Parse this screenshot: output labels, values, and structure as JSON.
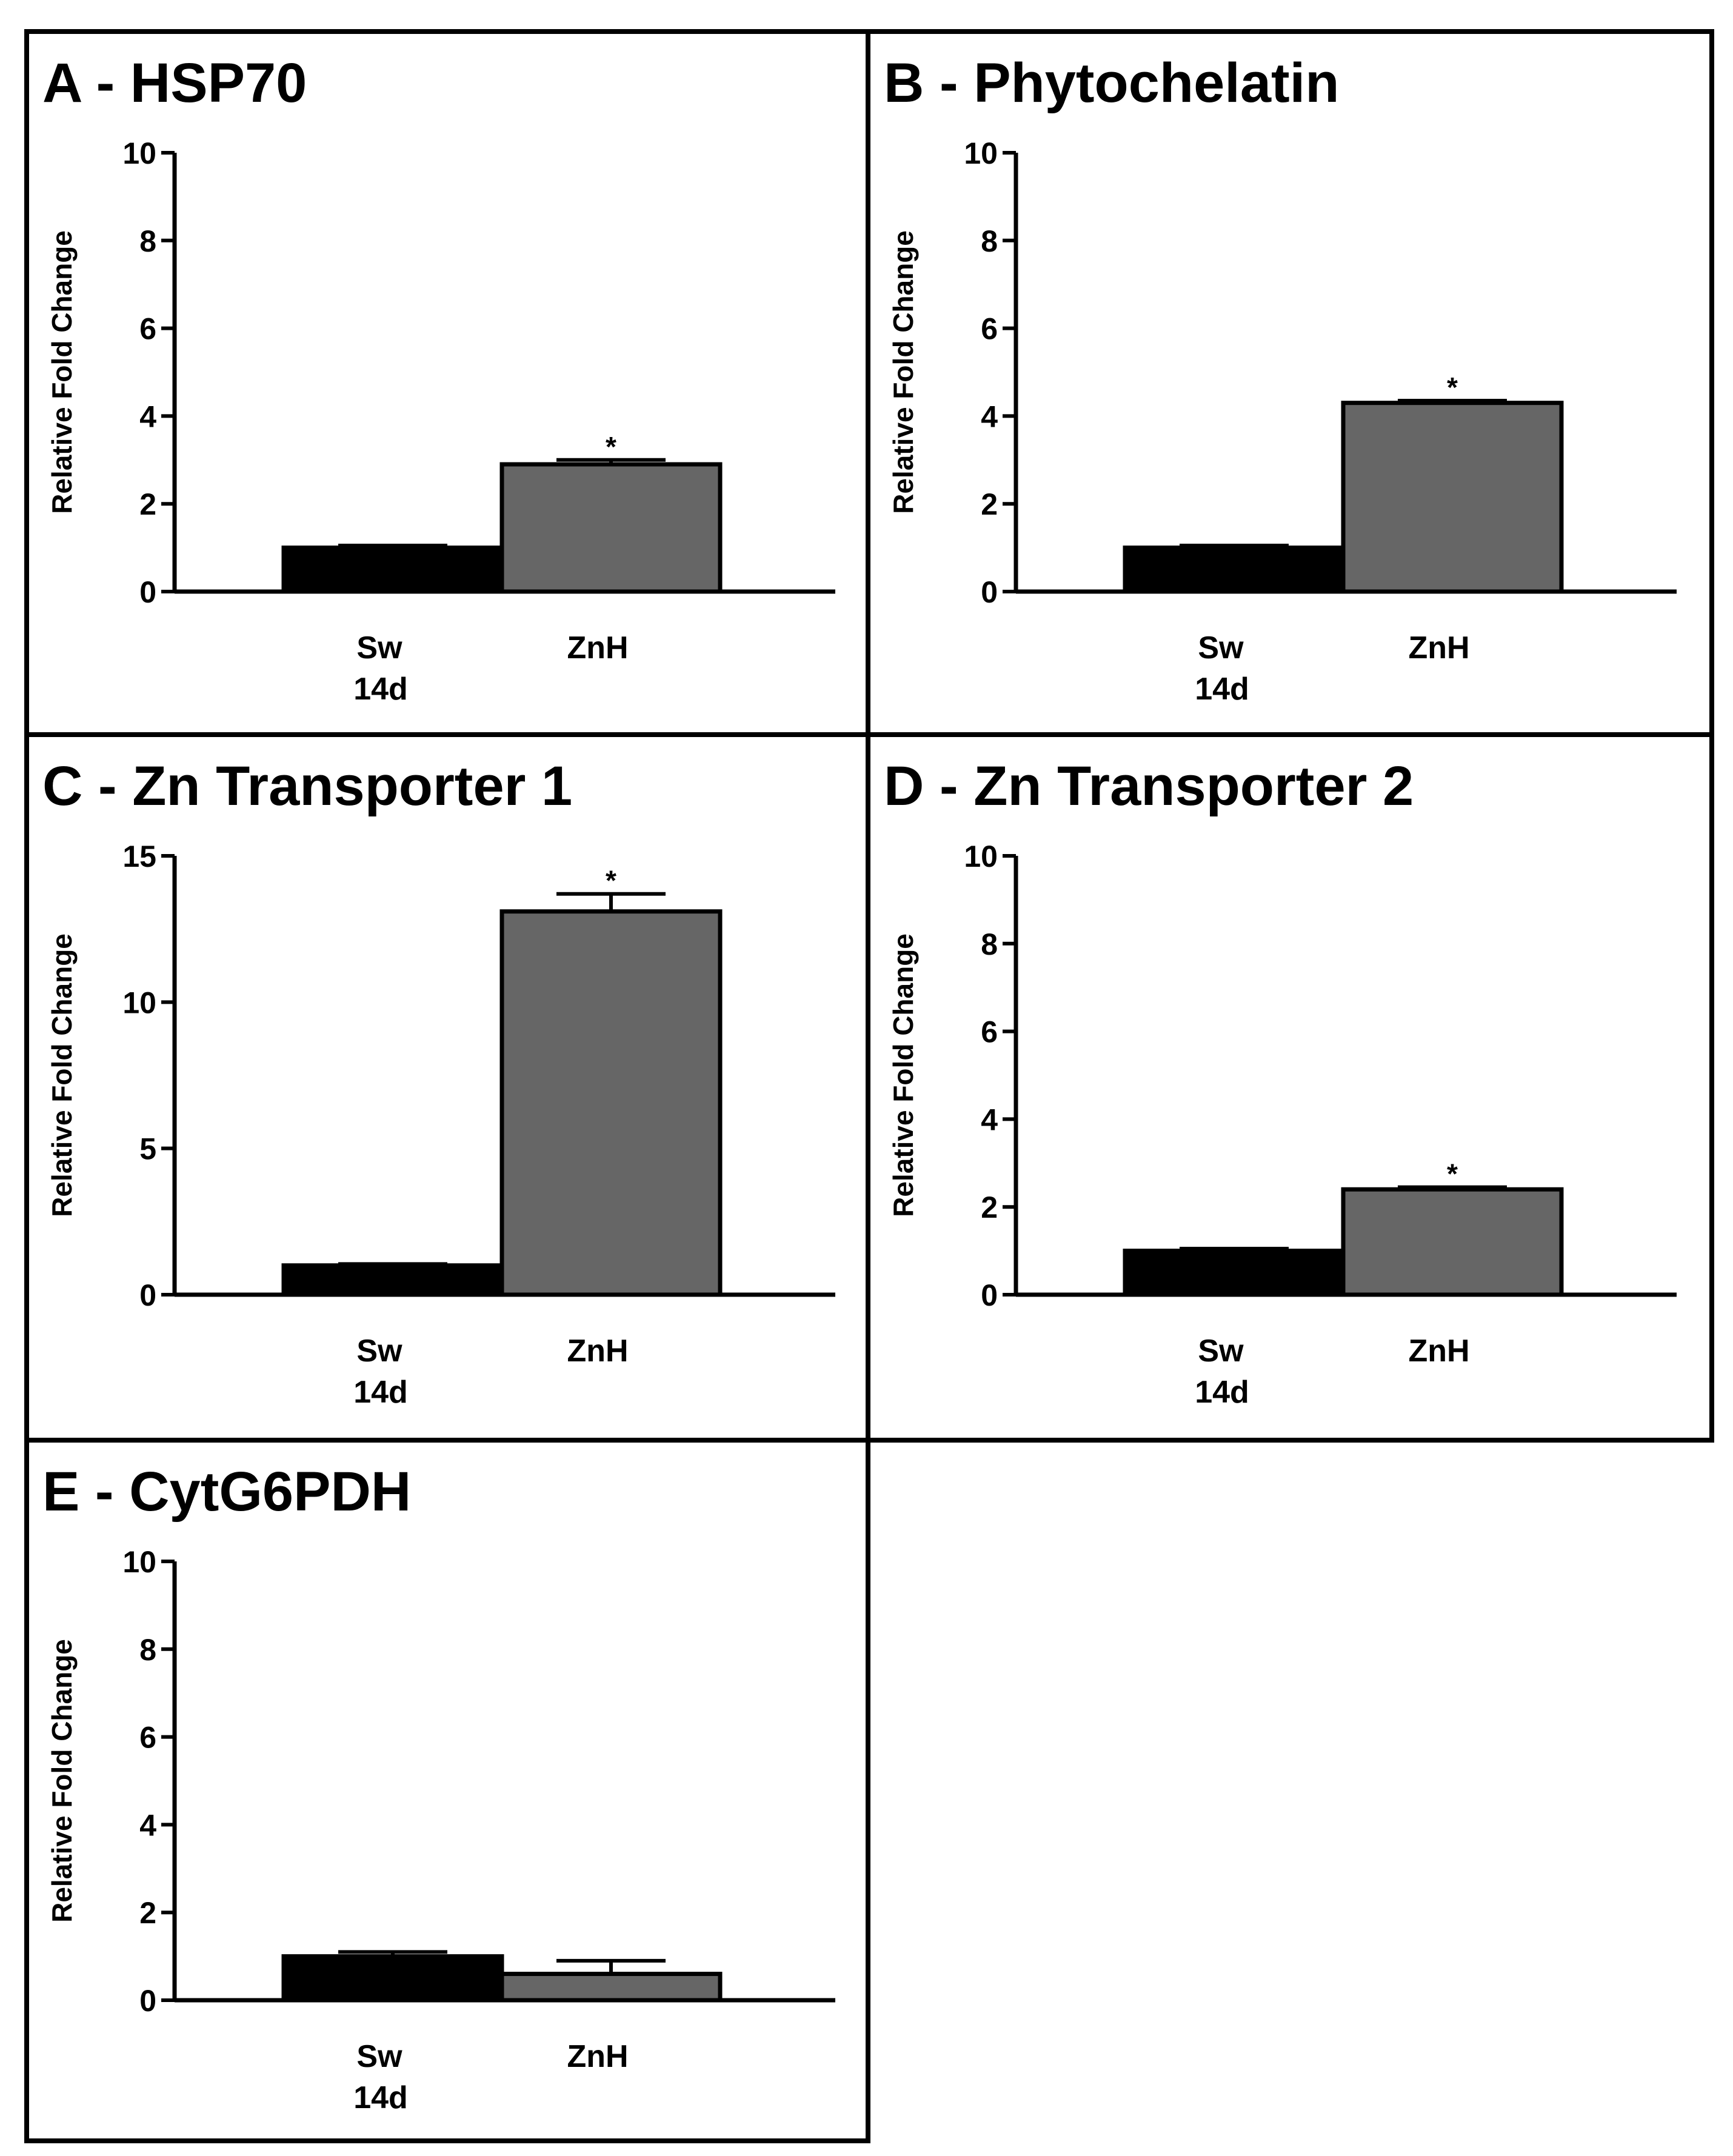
{
  "figure": {
    "colors": {
      "Sw": "#000000",
      "ZnH": "#666666",
      "axis": "#000000"
    }
  },
  "chart_data": [
    {
      "type": "bar",
      "title": "A - HSP70",
      "ylabel": "Relative Fold Change",
      "xlabel": "14d",
      "categories": [
        "Sw",
        "ZnH"
      ],
      "values": [
        1.0,
        2.9
      ],
      "errors": [
        0.05,
        0.1
      ],
      "significance": [
        "",
        "*"
      ],
      "ylim": [
        0,
        10
      ],
      "yticks": [
        0,
        2,
        4,
        6,
        8,
        10
      ]
    },
    {
      "type": "bar",
      "title": "B - Phytochelatin",
      "ylabel": "Relative Fold Change",
      "xlabel": "14d",
      "categories": [
        "Sw",
        "ZnH"
      ],
      "values": [
        1.0,
        4.3
      ],
      "errors": [
        0.05,
        0.05
      ],
      "significance": [
        "",
        "*"
      ],
      "ylim": [
        0,
        10
      ],
      "yticks": [
        0,
        2,
        4,
        6,
        8,
        10
      ]
    },
    {
      "type": "bar",
      "title": "C - Zn Transporter 1",
      "ylabel": "Relative Fold Change",
      "xlabel": "14d",
      "categories": [
        "Sw",
        "ZnH"
      ],
      "values": [
        1.0,
        13.1
      ],
      "errors": [
        0.05,
        0.6
      ],
      "significance": [
        "",
        "*"
      ],
      "ylim": [
        0,
        15
      ],
      "yticks": [
        0,
        5,
        10,
        15
      ]
    },
    {
      "type": "bar",
      "title": "D - Zn Transporter 2",
      "ylabel": "Relative Fold Change",
      "xlabel": "14d",
      "categories": [
        "Sw",
        "ZnH"
      ],
      "values": [
        1.0,
        2.4
      ],
      "errors": [
        0.05,
        0.05
      ],
      "significance": [
        "",
        "*"
      ],
      "ylim": [
        0,
        10
      ],
      "yticks": [
        0,
        2,
        4,
        6,
        8,
        10
      ]
    },
    {
      "type": "bar",
      "title": "E - CytG6PDH",
      "ylabel": "Relative Fold Change",
      "xlabel": "14d",
      "categories": [
        "Sw",
        "ZnH"
      ],
      "values": [
        1.0,
        0.6
      ],
      "errors": [
        0.1,
        0.3
      ],
      "significance": [
        "",
        ""
      ],
      "ylim": [
        0,
        10
      ],
      "yticks": [
        0,
        2,
        4,
        6,
        8,
        10
      ]
    }
  ]
}
